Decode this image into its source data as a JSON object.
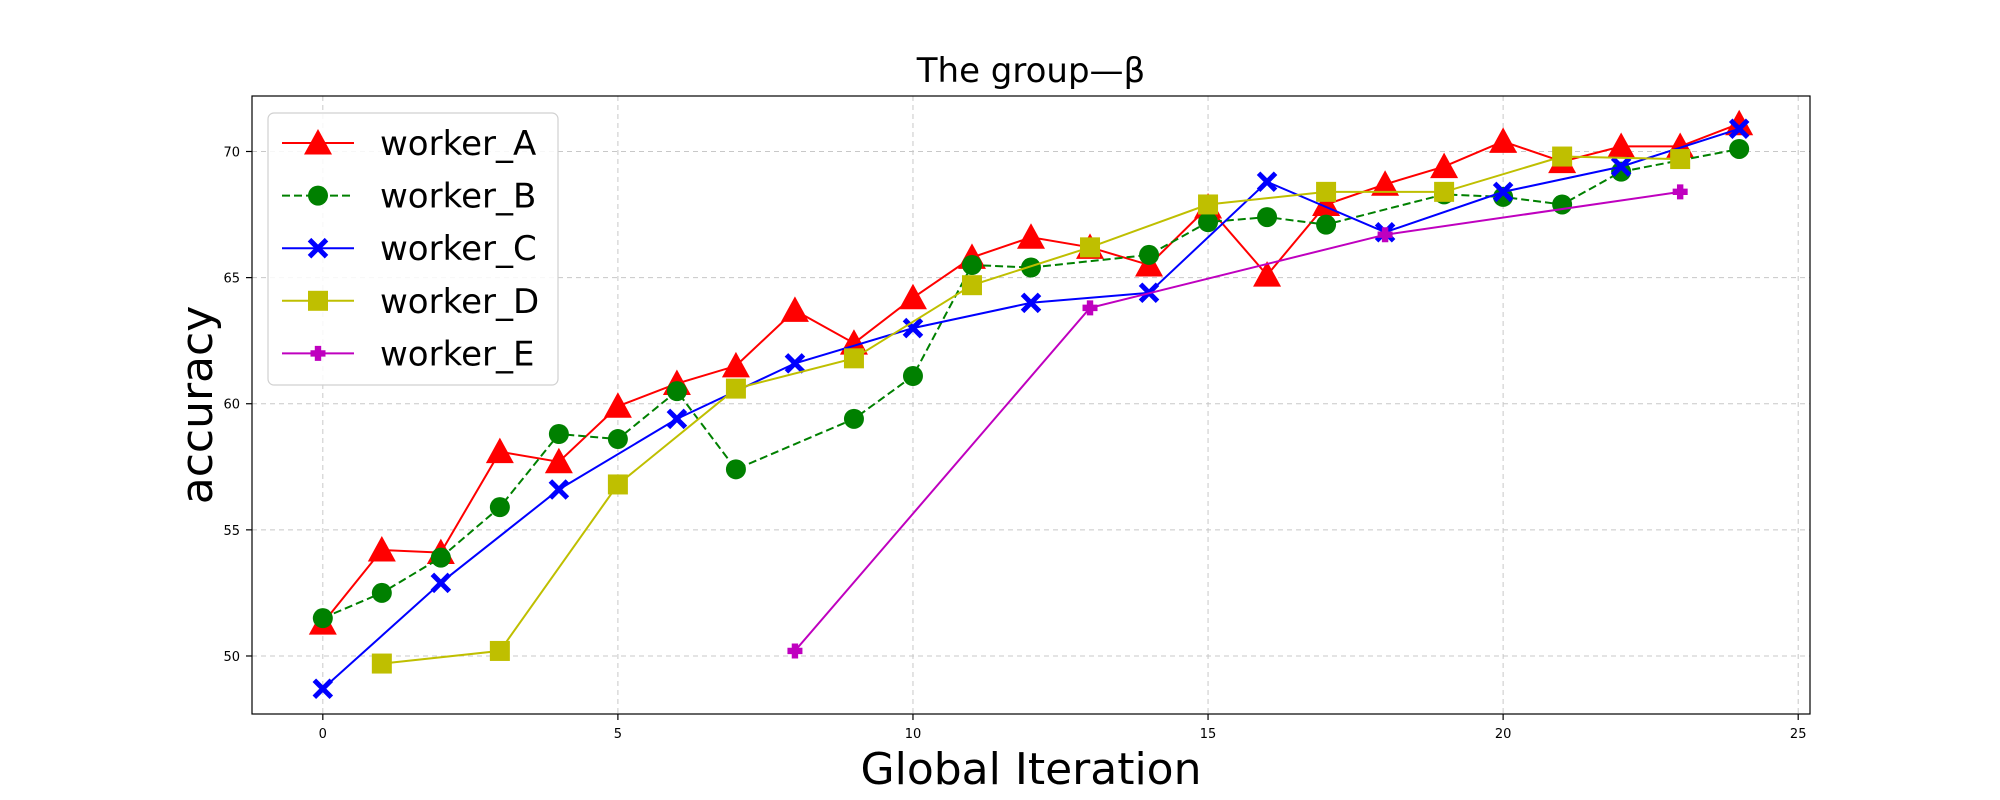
{
  "chart_data": {
    "type": "line",
    "title": "The group—β",
    "xlabel": "Global Iteration",
    "ylabel": "accuracy",
    "xlim": [
      -1.2,
      25.2
    ],
    "ylim": [
      47.7,
      72.2
    ],
    "xticks": [
      0,
      5,
      10,
      15,
      20,
      25
    ],
    "yticks": [
      50,
      55,
      60,
      65,
      70
    ],
    "grid": true,
    "legend_position": "top-left",
    "series": [
      {
        "name": "worker_A",
        "color": "#ff0000",
        "linestyle": "solid",
        "marker": "triangle",
        "points": [
          [
            0,
            51.3
          ],
          [
            1,
            54.2
          ],
          [
            2,
            54.1
          ],
          [
            3,
            58.1
          ],
          [
            4,
            57.7
          ],
          [
            5,
            59.9
          ],
          [
            6,
            60.8
          ],
          [
            7,
            61.5
          ],
          [
            8,
            63.7
          ],
          [
            9,
            62.4
          ],
          [
            10,
            64.2
          ],
          [
            11,
            65.8
          ],
          [
            12,
            66.6
          ],
          [
            13,
            66.2
          ],
          [
            14,
            65.5
          ],
          [
            15,
            67.8
          ],
          [
            16,
            65.1
          ],
          [
            17,
            67.9
          ],
          [
            18,
            68.7
          ],
          [
            19,
            69.4
          ],
          [
            20,
            70.4
          ],
          [
            21,
            69.6
          ],
          [
            22,
            70.2
          ],
          [
            23,
            70.2
          ],
          [
            24,
            71.1
          ]
        ]
      },
      {
        "name": "worker_B",
        "color": "#008000",
        "linestyle": "dashed",
        "marker": "circle",
        "points": [
          [
            0,
            51.5
          ],
          [
            1,
            52.5
          ],
          [
            2,
            53.9
          ],
          [
            3,
            55.9
          ],
          [
            4,
            58.8
          ],
          [
            5,
            58.6
          ],
          [
            6,
            60.5
          ],
          [
            7,
            57.4
          ],
          [
            9,
            59.4
          ],
          [
            10,
            61.1
          ],
          [
            11,
            65.5
          ],
          [
            12,
            65.4
          ],
          [
            14,
            65.9
          ],
          [
            15,
            67.2
          ],
          [
            16,
            67.4
          ],
          [
            17,
            67.1
          ],
          [
            19,
            68.3
          ],
          [
            20,
            68.2
          ],
          [
            21,
            67.9
          ],
          [
            22,
            69.2
          ],
          [
            24,
            70.1
          ]
        ]
      },
      {
        "name": "worker_C",
        "color": "#0000ff",
        "linestyle": "solid",
        "marker": "x",
        "points": [
          [
            0,
            48.7
          ],
          [
            2,
            52.9
          ],
          [
            4,
            56.6
          ],
          [
            6,
            59.4
          ],
          [
            8,
            61.6
          ],
          [
            10,
            63.0
          ],
          [
            12,
            64.0
          ],
          [
            14,
            64.4
          ],
          [
            16,
            68.8
          ],
          [
            18,
            66.8
          ],
          [
            20,
            68.4
          ],
          [
            22,
            69.4
          ],
          [
            24,
            70.9
          ]
        ]
      },
      {
        "name": "worker_D",
        "color": "#bfbf00",
        "linestyle": "solid",
        "marker": "square",
        "points": [
          [
            1,
            49.7
          ],
          [
            3,
            50.2
          ],
          [
            5,
            56.8
          ],
          [
            7,
            60.6
          ],
          [
            9,
            61.8
          ],
          [
            11,
            64.7
          ],
          [
            13,
            66.2
          ],
          [
            15,
            67.9
          ],
          [
            17,
            68.4
          ],
          [
            19,
            68.4
          ],
          [
            21,
            69.8
          ],
          [
            23,
            69.7
          ]
        ]
      },
      {
        "name": "worker_E",
        "color": "#bf00bf",
        "linestyle": "solid",
        "marker": "plus",
        "points": [
          [
            8,
            50.2
          ],
          [
            13,
            63.8
          ],
          [
            18,
            66.7
          ],
          [
            23,
            68.4
          ]
        ]
      }
    ]
  }
}
